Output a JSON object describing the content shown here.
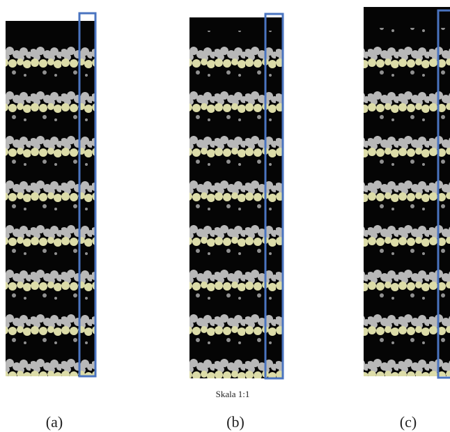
{
  "scale_note": "Skala 1:1",
  "panels": [
    {
      "label": "(a)"
    },
    {
      "label": "(b)"
    },
    {
      "label": "(c)"
    }
  ]
}
